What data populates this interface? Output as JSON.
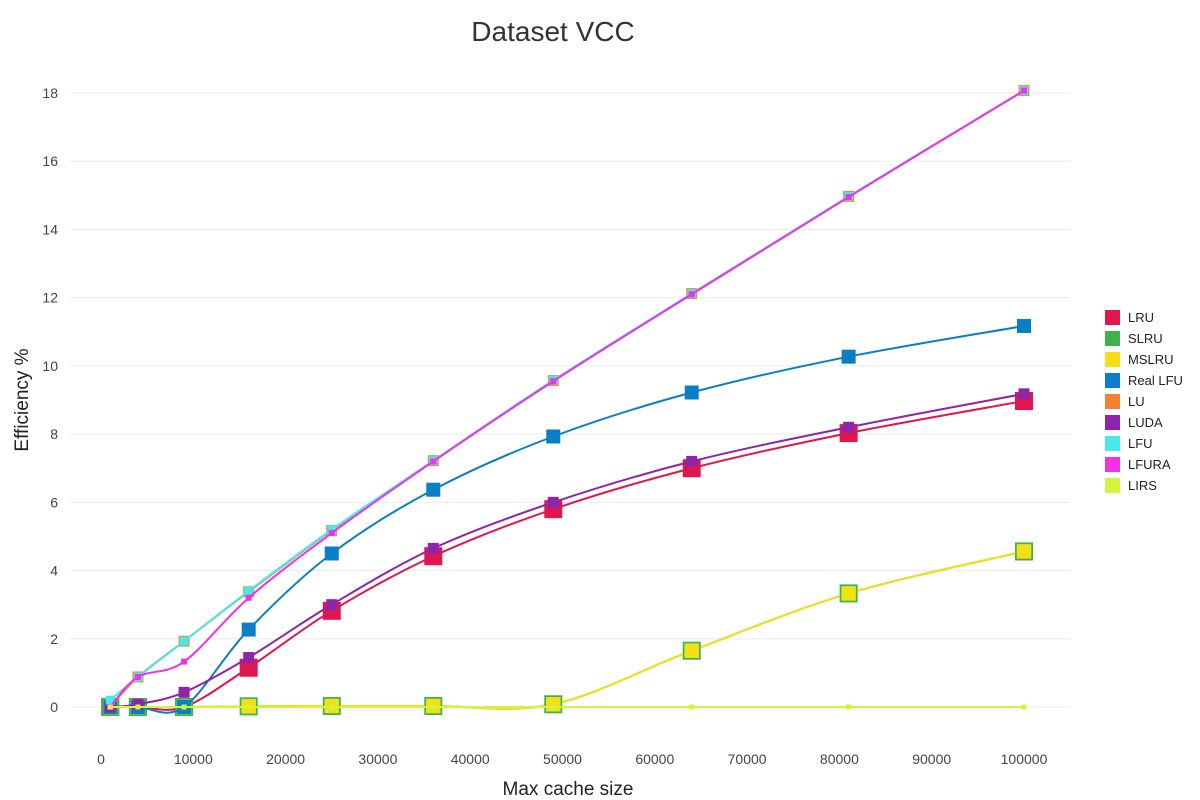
{
  "chart_data": {
    "type": "line",
    "title": "Dataset VCC",
    "xlabel": "Max cache size",
    "ylabel": "Efficiency %",
    "xlim": [
      -3000,
      105000
    ],
    "ylim": [
      -0.9,
      19
    ],
    "xticks": [
      0,
      10000,
      20000,
      30000,
      40000,
      50000,
      60000,
      70000,
      80000,
      90000,
      100000
    ],
    "yticks": [
      0,
      2,
      4,
      6,
      8,
      10,
      12,
      14,
      16,
      18
    ],
    "grid": "horizontal",
    "legend_position": "right",
    "x": [
      1000,
      4000,
      9000,
      16000,
      25000,
      36000,
      49000,
      64000,
      81000,
      100000
    ],
    "series": [
      {
        "name": "LRU",
        "color": "#e0174f",
        "values": [
          0.0,
          0.0,
          0.0,
          1.15,
          2.82,
          4.42,
          5.8,
          7.0,
          8.03,
          8.97
        ]
      },
      {
        "name": "SLRU",
        "color": "#3cb44b",
        "values": [
          0.0,
          0.0,
          0.0,
          0.02,
          0.03,
          0.03,
          0.08,
          1.65,
          3.33,
          4.56
        ]
      },
      {
        "name": "MSLRU",
        "color": "#f5e018",
        "values": [
          0.0,
          0.0,
          0.0,
          0.02,
          0.03,
          0.03,
          0.08,
          1.65,
          3.33,
          4.56
        ]
      },
      {
        "name": "Real LFU",
        "color": "#0a7fc8",
        "values": [
          0.0,
          0.0,
          0.0,
          2.27,
          4.5,
          6.37,
          7.93,
          9.22,
          10.27,
          11.17
        ]
      },
      {
        "name": "LU",
        "color": "#f58231",
        "values": [
          0.0,
          0.88,
          1.93,
          3.38,
          5.18,
          7.22,
          9.57,
          12.12,
          14.97,
          18.07
        ]
      },
      {
        "name": "LUDA",
        "color": "#8e24aa",
        "values": [
          0.0,
          0.08,
          0.43,
          1.45,
          3.0,
          4.65,
          6.0,
          7.2,
          8.2,
          9.18
        ]
      },
      {
        "name": "LFU",
        "color": "#46e8e8",
        "values": [
          0.2,
          0.88,
          1.93,
          3.4,
          5.2,
          7.22,
          9.58,
          12.12,
          14.97,
          18.07
        ]
      },
      {
        "name": "LFURA",
        "color": "#f032e6",
        "values": [
          0.0,
          0.88,
          1.33,
          3.2,
          5.1,
          7.2,
          9.55,
          12.1,
          14.95,
          18.07
        ]
      },
      {
        "name": "LIRS",
        "color": "#d2f53c",
        "values": [
          0.0,
          0.0,
          0.0,
          0.0,
          0.0,
          0.0,
          0.0,
          0.0,
          0.0,
          0.0
        ]
      }
    ]
  }
}
